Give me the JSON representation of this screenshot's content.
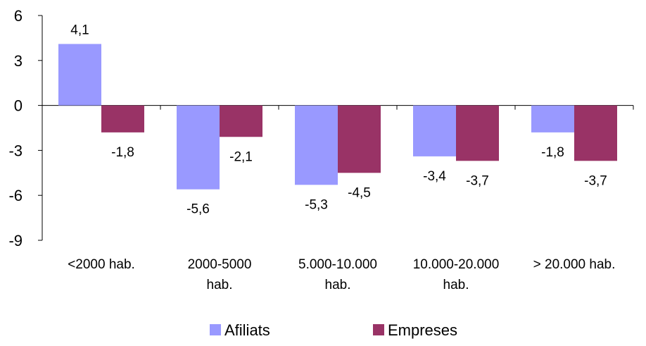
{
  "chart_data": {
    "type": "bar",
    "categories": [
      [
        "<2000 hab."
      ],
      [
        "2000-5000",
        "hab."
      ],
      [
        "5.000-10.000",
        "hab."
      ],
      [
        "10.000-20.000",
        "hab."
      ],
      [
        "> 20.000 hab."
      ]
    ],
    "series": [
      {
        "name": "Afiliats",
        "values": [
          4.1,
          -5.6,
          -5.3,
          -3.4,
          -1.8
        ],
        "labels": [
          "4,1",
          "-5,6",
          "-5,3",
          "-3,4",
          "-1,8"
        ],
        "color": "#9999ff"
      },
      {
        "name": "Empreses",
        "values": [
          -1.8,
          -2.1,
          -4.5,
          -3.7,
          -3.7
        ],
        "labels": [
          "-1,8",
          "-2,1",
          "-4,5",
          "-3,7",
          "-3,7"
        ],
        "color": "#993366"
      }
    ],
    "yticks": [
      "6",
      "3",
      "0",
      "-3",
      "-6",
      "-9"
    ],
    "ylim": [
      -9,
      6
    ],
    "grid": false,
    "legend_position": "bottom"
  }
}
